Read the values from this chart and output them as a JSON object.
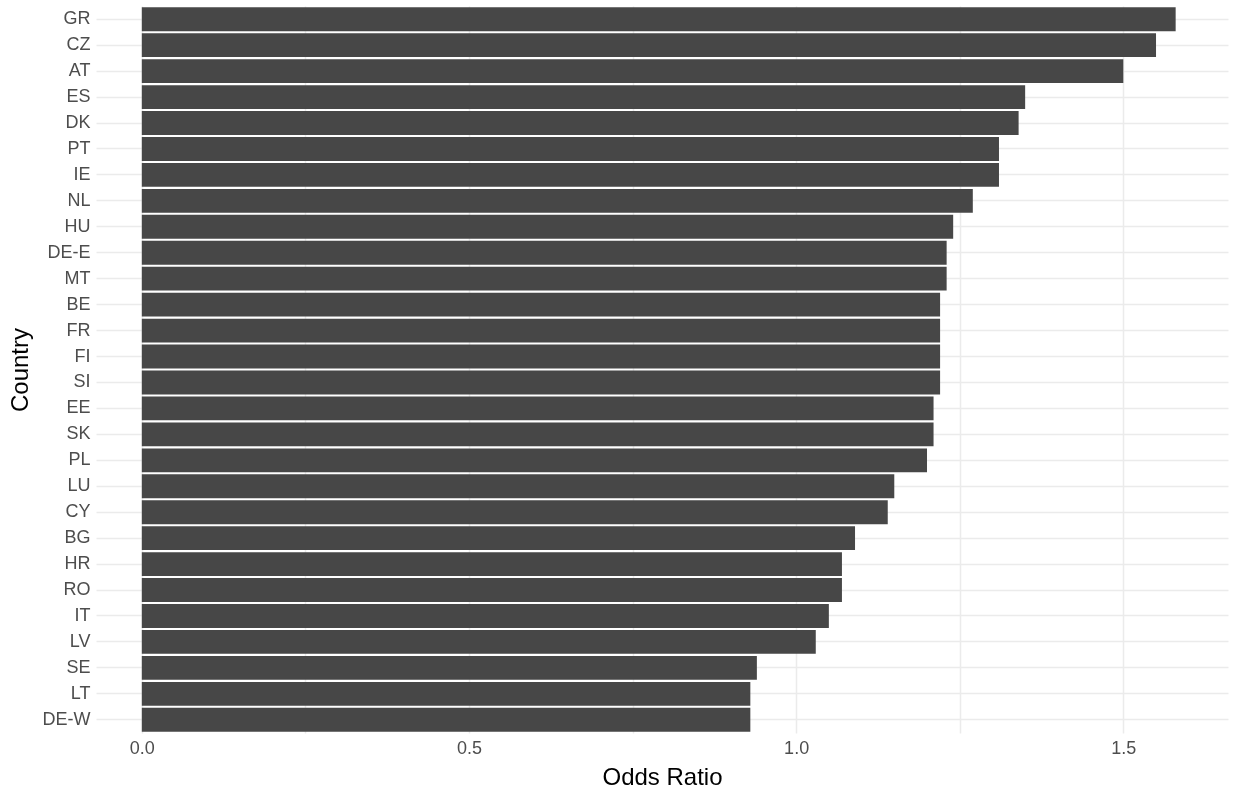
{
  "chart_data": {
    "type": "bar",
    "orientation": "horizontal",
    "xlabel": "Odds Ratio",
    "ylabel": "Country",
    "categories": [
      "GR",
      "CZ",
      "AT",
      "ES",
      "DK",
      "PT",
      "IE",
      "NL",
      "HU",
      "DE-E",
      "MT",
      "BE",
      "FR",
      "FI",
      "SI",
      "EE",
      "SK",
      "PL",
      "LU",
      "CY",
      "BG",
      "HR",
      "RO",
      "IT",
      "LV",
      "SE",
      "LT",
      "DE-W"
    ],
    "values": [
      1.58,
      1.55,
      1.5,
      1.35,
      1.34,
      1.31,
      1.31,
      1.27,
      1.24,
      1.23,
      1.23,
      1.22,
      1.22,
      1.22,
      1.22,
      1.21,
      1.21,
      1.2,
      1.15,
      1.14,
      1.09,
      1.07,
      1.07,
      1.05,
      1.03,
      0.94,
      0.93,
      0.93
    ],
    "color": "#474747",
    "xlim": [
      -0.07,
      1.66
    ],
    "xticks": [
      {
        "value": 0,
        "label": "0.0"
      },
      {
        "value": 0.25,
        "label": null
      },
      {
        "value": 0.5,
        "label": "0.5"
      },
      {
        "value": 0.75,
        "label": null
      },
      {
        "value": 1,
        "label": "1.0"
      },
      {
        "value": 1.25,
        "label": null
      },
      {
        "value": 1.5,
        "label": "1.5"
      }
    ],
    "grid": true
  }
}
